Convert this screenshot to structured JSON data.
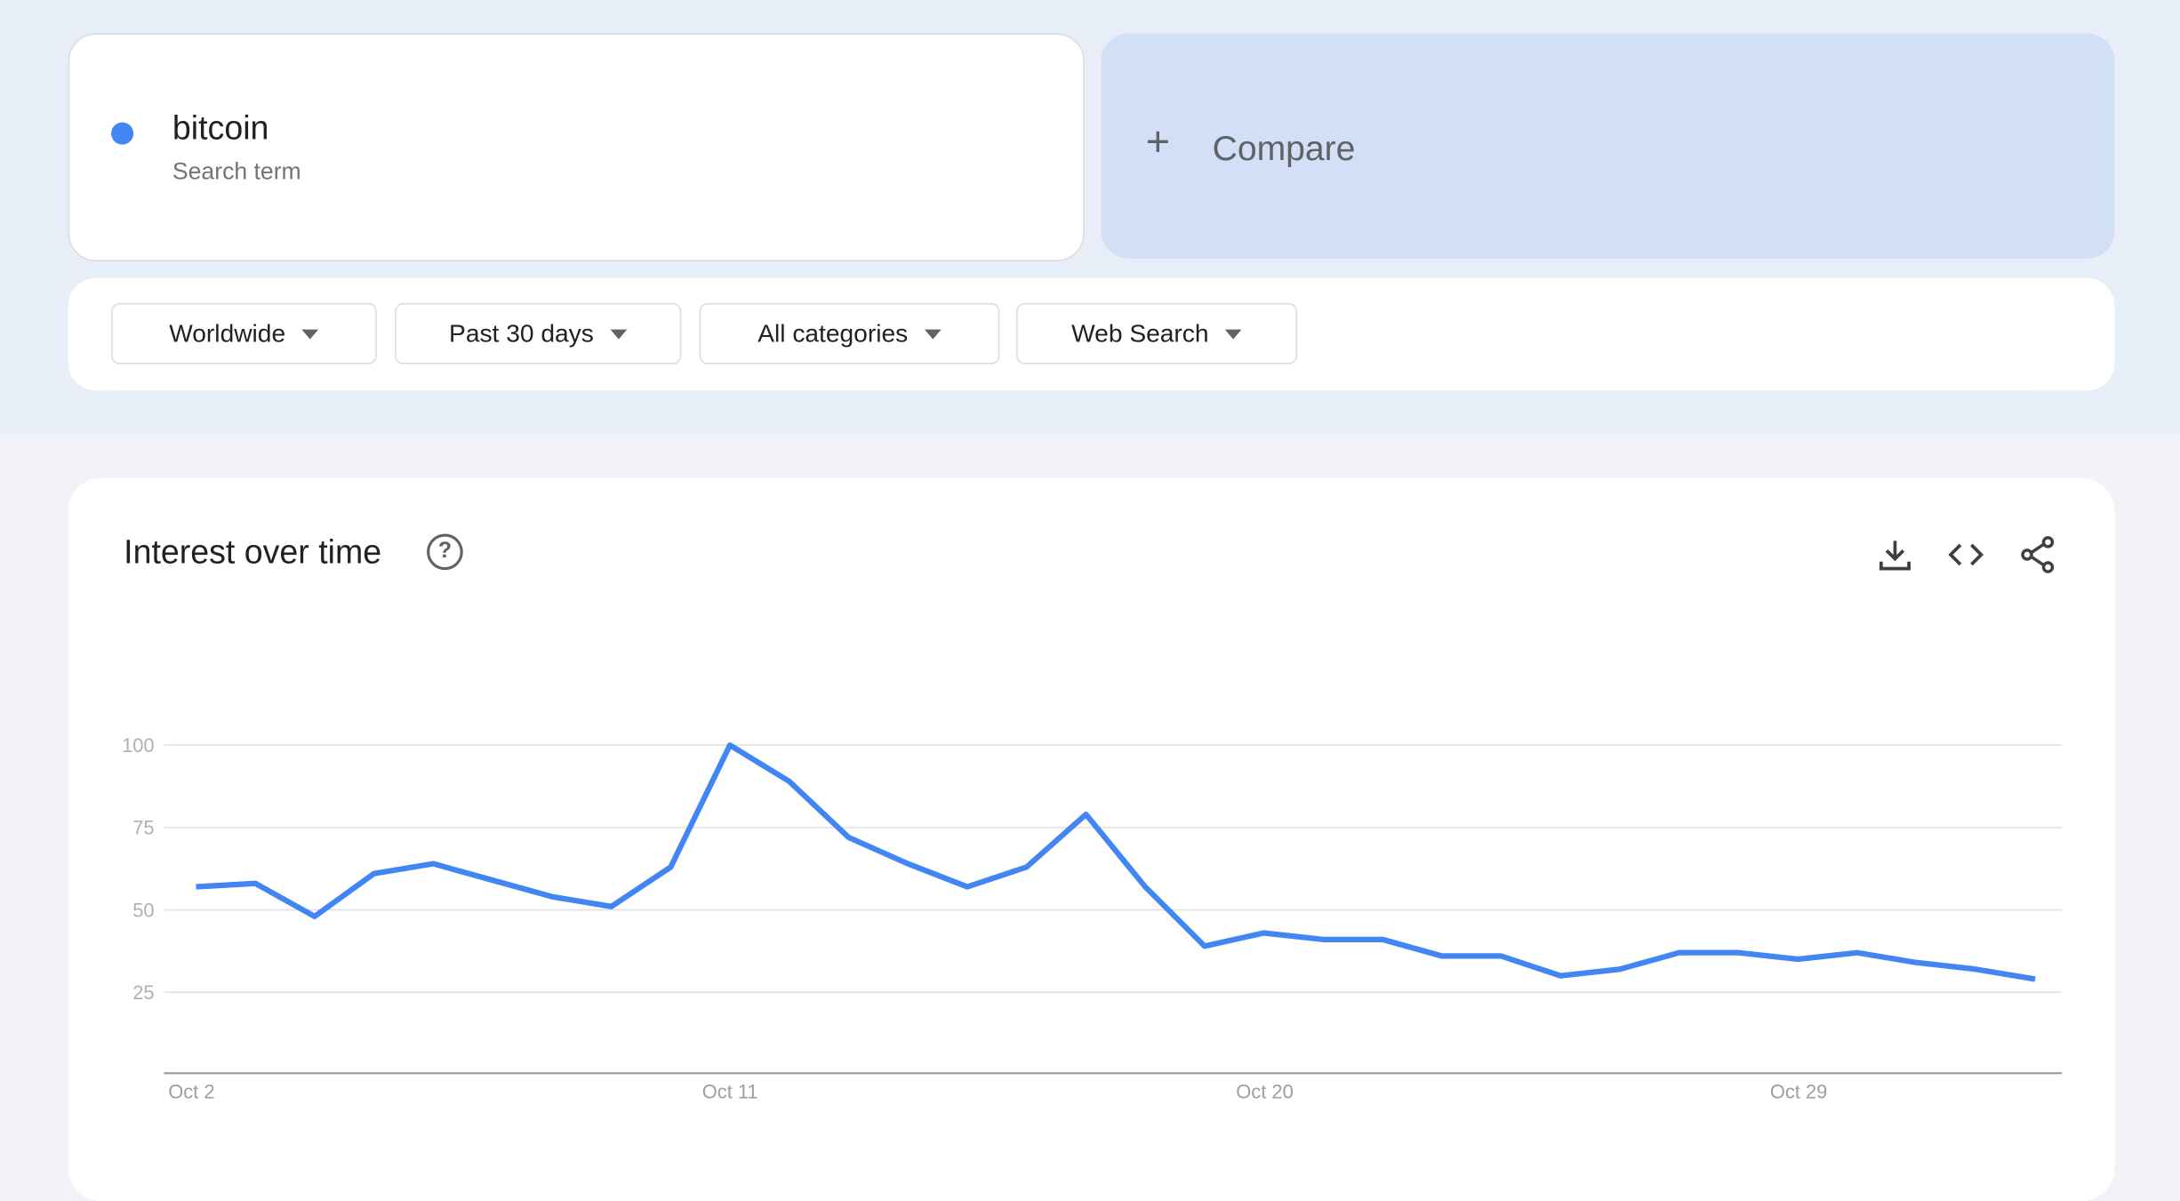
{
  "search": {
    "term": "bitcoin",
    "subtitle": "Search term",
    "color": "#4285f4"
  },
  "compare": {
    "label": "Compare"
  },
  "filters": [
    {
      "label": "Worldwide"
    },
    {
      "label": "Past 30 days"
    },
    {
      "label": "All categories"
    },
    {
      "label": "Web Search"
    }
  ],
  "chart_card": {
    "title": "Interest over time",
    "help_icon": "question-circle-icon",
    "actions": [
      "download-icon",
      "embed-code-icon",
      "share-icon"
    ]
  },
  "chart_data": {
    "type": "line",
    "title": "",
    "xlabel": "",
    "ylabel": "",
    "ylim": [
      0,
      100
    ],
    "yticks": [
      25,
      50,
      75,
      100
    ],
    "xtick_labels": [
      "Oct 2",
      "Oct 11",
      "Oct 20",
      "Oct 29"
    ],
    "grid": true,
    "color": "#4285f4",
    "x": [
      "Oct 2",
      "Oct 3",
      "Oct 4",
      "Oct 5",
      "Oct 6",
      "Oct 7",
      "Oct 8",
      "Oct 9",
      "Oct 10",
      "Oct 11",
      "Oct 12",
      "Oct 13",
      "Oct 14",
      "Oct 15",
      "Oct 16",
      "Oct 17",
      "Oct 18",
      "Oct 19",
      "Oct 20",
      "Oct 21",
      "Oct 22",
      "Oct 23",
      "Oct 24",
      "Oct 25",
      "Oct 26",
      "Oct 27",
      "Oct 28",
      "Oct 29",
      "Oct 30",
      "Oct 31",
      "Nov 1",
      "Nov 2"
    ],
    "series": [
      {
        "values": [
          57,
          58,
          48,
          61,
          64,
          59,
          54,
          51,
          63,
          100,
          89,
          72,
          64,
          57,
          63,
          79,
          57,
          39,
          43,
          41,
          41,
          36,
          36,
          30,
          32,
          37,
          37,
          35,
          37,
          34,
          32,
          29
        ]
      }
    ]
  }
}
